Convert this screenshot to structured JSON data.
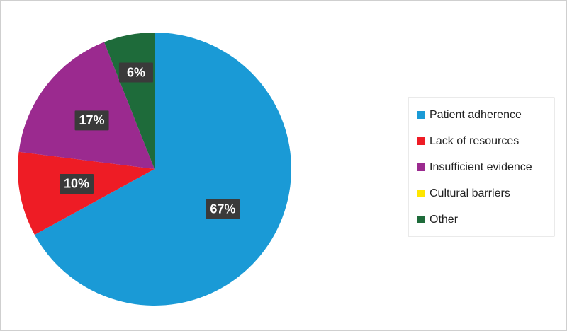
{
  "chart_data": {
    "type": "pie",
    "categories": [
      "Patient adherence",
      "Lack of resources",
      "Insufficient evidence",
      "Cultural barriers",
      "Other"
    ],
    "values": [
      67,
      10,
      17,
      0,
      6
    ],
    "value_labels": [
      "67%",
      "10%",
      "17%",
      null,
      "6%"
    ],
    "colors": [
      "#1a9ad6",
      "#ee1c25",
      "#9b2a8f",
      "#ffe600",
      "#1e6b3a"
    ],
    "legend": "right"
  }
}
